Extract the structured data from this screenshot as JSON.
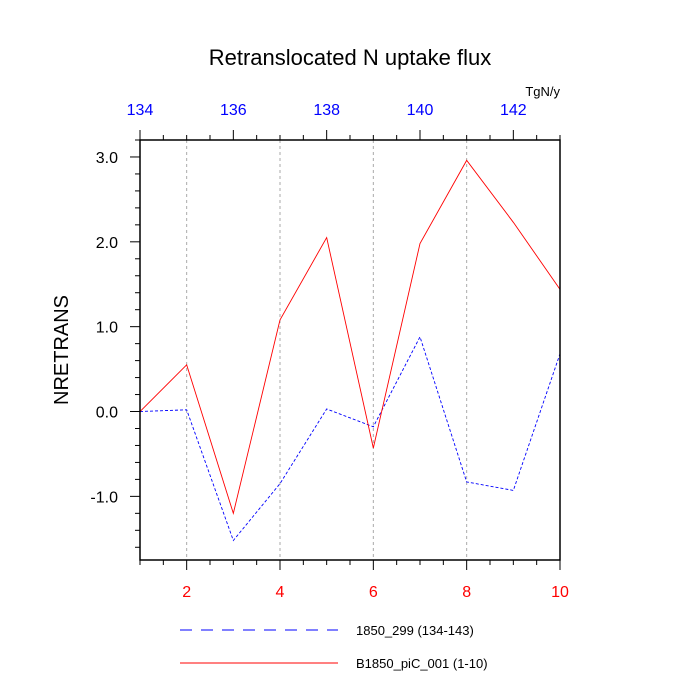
{
  "chart_data": {
    "type": "line",
    "title": "Retranslocated N uptake flux",
    "ylabel": "NRETRANS",
    "units": "TgN/y",
    "ylim": [
      -1.75,
      3.2
    ],
    "y_ticks": [
      -1.0,
      0.0,
      1.0,
      2.0,
      3.0
    ],
    "y_tick_labels": [
      "-1.0",
      "0.0",
      "1.0",
      "2.0",
      "3.0"
    ],
    "bottom_axis": {
      "range": [
        1,
        10
      ],
      "ticks": [
        2,
        4,
        6,
        8,
        10
      ],
      "tick_labels": [
        "2",
        "4",
        "6",
        "8",
        "10"
      ],
      "color": "#ff0000"
    },
    "top_axis": {
      "range": [
        134,
        143
      ],
      "ticks": [
        134,
        136,
        138,
        140,
        142
      ],
      "tick_labels": [
        "134",
        "136",
        "138",
        "140",
        "142"
      ],
      "color": "#0000ff"
    },
    "grid": "vertical-dashed",
    "legend_position": "bottom",
    "series": [
      {
        "name": "1850_299 (134-143)",
        "axis": "top",
        "color": "#0000ff",
        "dash": "dashed",
        "x": [
          134,
          135,
          136,
          137,
          138,
          139,
          140,
          141,
          142,
          143
        ],
        "values": [
          0.0,
          0.02,
          -1.52,
          -0.85,
          0.03,
          -0.18,
          0.88,
          -0.83,
          -0.93,
          0.68
        ]
      },
      {
        "name": "B1850_piC_001 (1-10)",
        "axis": "bottom",
        "color": "#ff0000",
        "dash": "solid",
        "x": [
          1,
          2,
          3,
          4,
          5,
          6,
          7,
          8,
          9,
          10
        ],
        "values": [
          0.0,
          0.55,
          -1.2,
          1.08,
          2.05,
          -0.43,
          1.98,
          2.96,
          2.23,
          1.44
        ]
      }
    ]
  }
}
